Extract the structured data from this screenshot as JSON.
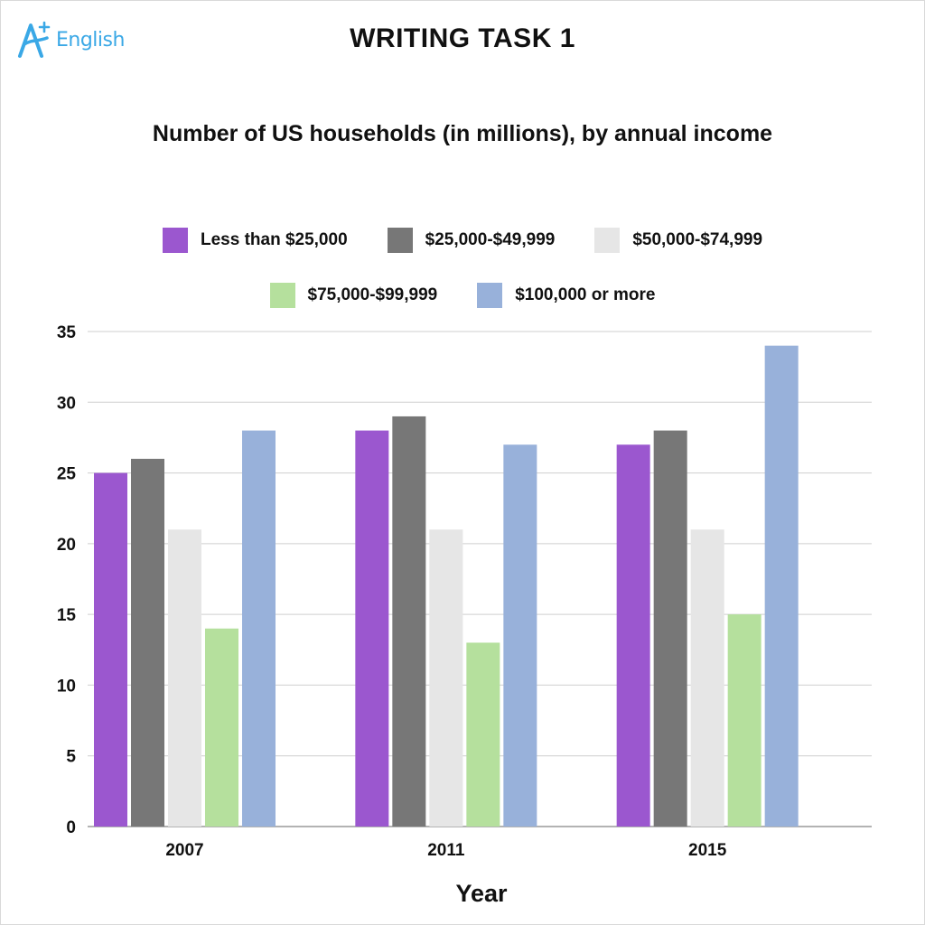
{
  "brand": {
    "name": "English",
    "mark": "A+"
  },
  "heading": "WRITING TASK 1",
  "colors": {
    "Less than $25,000": "#9b57cf",
    "$25,000-$49,999": "#777777",
    "$50,000-$74,999": "#e6e6e6",
    "$75,000-$99,999": "#b5e09d",
    "$100,000 or more": "#98b1da"
  },
  "chart_data": {
    "type": "bar",
    "title": "Number of US households (in millions), by annual income",
    "xlabel": "Year",
    "ylabel": "",
    "categories": [
      "2007",
      "2011",
      "2015"
    ],
    "series": [
      {
        "name": "Less than $25,000",
        "values": [
          25,
          28,
          27
        ]
      },
      {
        "name": "$25,000-$49,999",
        "values": [
          26,
          29,
          28
        ]
      },
      {
        "name": "$50,000-$74,999",
        "values": [
          21,
          21,
          21
        ]
      },
      {
        "name": "$75,000-$99,999",
        "values": [
          14,
          13,
          15
        ]
      },
      {
        "name": "$100,000 or more",
        "values": [
          28,
          27,
          34
        ]
      }
    ],
    "ylim": [
      0,
      35
    ],
    "yticks": [
      0,
      5,
      10,
      15,
      20,
      25,
      30,
      35
    ],
    "grid": true,
    "legend_position": "top"
  }
}
